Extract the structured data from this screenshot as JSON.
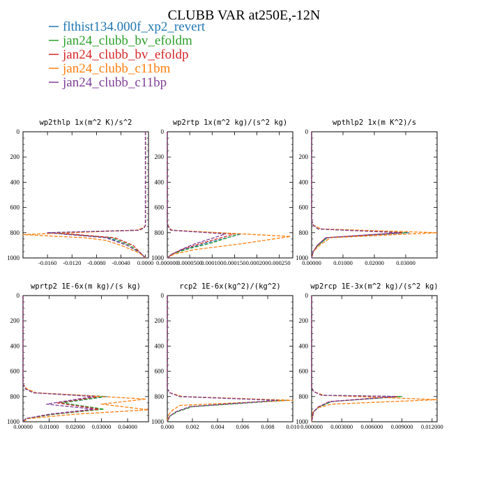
{
  "chart_data": {
    "type": "line",
    "title": "CLUBB VAR at250E,-12N",
    "legend_placement": "top-left",
    "legend": [
      {
        "name": "flthist134.000f_xp2_revert",
        "color": "#1f77b4"
      },
      {
        "name": "jan24_clubb_bv_efoldm",
        "color": "#2ca02c"
      },
      {
        "name": "jan24_clubb_bv_efoldp",
        "color": "#d62728"
      },
      {
        "name": "jan24_clubb_c11bm",
        "color": "#ff7f0e"
      },
      {
        "name": "jan24_clubb_c11bp",
        "color": "#7f3f98"
      }
    ],
    "panels": [
      {
        "title": "wp2thlp  1x(m^2 K)/s^2",
        "xlim": [
          -0.02,
          0.0005
        ],
        "ylim": [
          1000,
          0
        ],
        "xticks": [
          -0.016,
          -0.012,
          -0.008,
          -0.004,
          0.0
        ],
        "xtick_labels": [
          "-0.0160",
          "-0.0120",
          "-0.0080",
          "-0.0040",
          "0.0000"
        ],
        "yticks": [
          0,
          200,
          400,
          600,
          800,
          1000
        ],
        "series": [
          {
            "color": "#1f77b4",
            "x": [
              0.0,
              0.0,
              0.0,
              -0.0002,
              -0.001,
              -0.016,
              -0.006,
              -0.003,
              -0.0008,
              0.0
            ],
            "y": [
              0,
              700,
              740,
              760,
              780,
              800,
              840,
              900,
              960,
              1000
            ]
          },
          {
            "color": "#2ca02c",
            "x": [
              0.0,
              0.0,
              0.0,
              -0.0002,
              -0.001,
              -0.0155,
              -0.0055,
              -0.0025,
              -0.0008,
              0.0
            ],
            "y": [
              0,
              700,
              740,
              760,
              780,
              800,
              840,
              900,
              960,
              1000
            ]
          },
          {
            "color": "#d62728",
            "x": [
              0.0,
              0.0,
              0.0,
              -0.0002,
              -0.001,
              -0.015,
              -0.005,
              -0.002,
              -0.0008,
              0.0
            ],
            "y": [
              0,
              700,
              740,
              760,
              780,
              800,
              840,
              900,
              960,
              1000
            ]
          },
          {
            "color": "#ff7f0e",
            "x": [
              0.0,
              0.0,
              0.0,
              -0.0003,
              -0.0015,
              -0.02,
              -0.01,
              -0.0065,
              -0.004,
              -0.001,
              0.0
            ],
            "y": [
              0,
              700,
              740,
              760,
              780,
              815,
              840,
              860,
              900,
              960,
              1000
            ]
          },
          {
            "color": "#7f3f98",
            "x": [
              0.0,
              0.0,
              0.0,
              -0.0002,
              -0.001,
              -0.016,
              -0.0065,
              -0.003,
              -0.0008,
              0.0
            ],
            "y": [
              0,
              700,
              740,
              760,
              780,
              800,
              840,
              900,
              960,
              1000
            ]
          }
        ]
      },
      {
        "title": "wp2rtp  1x(m^2 kg)/(s^2 kg)",
        "xlim": [
          0.0,
          0.00028
        ],
        "ylim": [
          1000,
          0
        ],
        "xticks": [
          0.0,
          5e-05,
          0.0001,
          0.00015,
          0.0002,
          0.00025
        ],
        "xtick_labels": [
          "0.000000",
          "0.0000500",
          "0.000100",
          "0.000150",
          "0.000200",
          "0.000250"
        ],
        "yticks": [
          0,
          200,
          400,
          600,
          800,
          1000
        ],
        "series": [
          {
            "color": "#1f77b4",
            "x": [
              0.0,
              0.0,
              2e-06,
              8e-06,
              0.000165,
              9e-05,
              4e-05,
              1e-05,
              0.0
            ],
            "y": [
              0,
              720,
              750,
              780,
              810,
              880,
              930,
              970,
              1000
            ]
          },
          {
            "color": "#2ca02c",
            "x": [
              0.0,
              0.0,
              2e-06,
              8e-06,
              0.00016,
              0.0001,
              4.5e-05,
              1e-05,
              0.0
            ],
            "y": [
              0,
              720,
              750,
              780,
              810,
              880,
              930,
              970,
              1000
            ]
          },
          {
            "color": "#d62728",
            "x": [
              0.0,
              0.0,
              2e-06,
              8e-06,
              0.00015,
              8e-05,
              3.5e-05,
              1e-05,
              0.0
            ],
            "y": [
              0,
              720,
              750,
              780,
              810,
              880,
              930,
              970,
              1000
            ]
          },
          {
            "color": "#ff7f0e",
            "x": [
              0.0,
              0.0,
              3e-06,
              1e-05,
              0.000275,
              0.00016,
              6e-05,
              1.5e-05,
              0.0
            ],
            "y": [
              0,
              720,
              750,
              780,
              830,
              890,
              935,
              970,
              1000
            ]
          },
          {
            "color": "#7f3f98",
            "x": [
              0.0,
              0.0,
              2e-06,
              8e-06,
              0.00013,
              6e-05,
              3e-05,
              1e-05,
              0.0
            ],
            "y": [
              0,
              720,
              750,
              780,
              810,
              890,
              935,
              970,
              1000
            ]
          }
        ]
      },
      {
        "title": "wpthlp2  1x(m K^2)/s",
        "xlim": [
          0.0,
          0.04
        ],
        "ylim": [
          1000,
          0
        ],
        "xticks": [
          0.0,
          0.01,
          0.02,
          0.03
        ],
        "xtick_labels": [
          "0.00000",
          "0.01000",
          "0.02000",
          "0.03000"
        ],
        "yticks": [
          0,
          200,
          400,
          600,
          800,
          1000
        ],
        "series": [
          {
            "color": "#1f77b4",
            "x": [
              0.0,
              0.0,
              0.0005,
              0.002,
              0.031,
              0.005,
              0.002,
              0.0005,
              0.0
            ],
            "y": [
              0,
              700,
              740,
              770,
              800,
              840,
              900,
              950,
              1000
            ]
          },
          {
            "color": "#2ca02c",
            "x": [
              0.0,
              0.0,
              0.0005,
              0.002,
              0.03,
              0.005,
              0.002,
              0.0005,
              0.0
            ],
            "y": [
              0,
              700,
              740,
              770,
              800,
              840,
              900,
              950,
              1000
            ]
          },
          {
            "color": "#d62728",
            "x": [
              0.0,
              0.0,
              0.0005,
              0.002,
              0.029,
              0.0045,
              0.0018,
              0.0005,
              0.0
            ],
            "y": [
              0,
              700,
              740,
              770,
              800,
              840,
              900,
              950,
              1000
            ]
          },
          {
            "color": "#ff7f0e",
            "x": [
              0.0,
              0.0,
              0.0006,
              0.003,
              0.04,
              0.006,
              0.0025,
              0.0005,
              0.0
            ],
            "y": [
              0,
              700,
              740,
              770,
              800,
              840,
              900,
              950,
              1000
            ]
          },
          {
            "color": "#7f3f98",
            "x": [
              0.0,
              0.0,
              0.0005,
              0.002,
              0.028,
              0.0045,
              0.0018,
              0.0005,
              0.0
            ],
            "y": [
              0,
              700,
              740,
              770,
              800,
              840,
              900,
              950,
              1000
            ]
          }
        ]
      },
      {
        "title": "wprtp2  1E-6x(m kg)/(s kg)",
        "xlim": [
          0.0,
          0.048
        ],
        "ylim": [
          1000,
          0
        ],
        "xticks": [
          0.0,
          0.01,
          0.02,
          0.03,
          0.04
        ],
        "xtick_labels": [
          "0.00000",
          "0.01000",
          "0.02000",
          "0.03000",
          "0.04000"
        ],
        "yticks": [
          0,
          200,
          400,
          600,
          800,
          1000
        ],
        "series": [
          {
            "color": "#1f77b4",
            "x": [
              0.0,
              0.0,
              0.001,
              0.004,
              0.032,
              0.015,
              0.03,
              0.012,
              0.001,
              0.0
            ],
            "y": [
              0,
              700,
              740,
              770,
              800,
              850,
              900,
              940,
              975,
              1000
            ]
          },
          {
            "color": "#2ca02c",
            "x": [
              0.0,
              0.0,
              0.001,
              0.004,
              0.031,
              0.015,
              0.031,
              0.012,
              0.001,
              0.0
            ],
            "y": [
              0,
              700,
              740,
              770,
              800,
              850,
              900,
              940,
              975,
              1000
            ]
          },
          {
            "color": "#d62728",
            "x": [
              0.0,
              0.0,
              0.001,
              0.004,
              0.029,
              0.013,
              0.029,
              0.011,
              0.001,
              0.0
            ],
            "y": [
              0,
              700,
              740,
              770,
              800,
              850,
              900,
              940,
              975,
              1000
            ]
          },
          {
            "color": "#ff7f0e",
            "x": [
              0.0,
              0.0,
              0.0015,
              0.005,
              0.047,
              0.03,
              0.048,
              0.02,
              0.002,
              0.0
            ],
            "y": [
              0,
              700,
              740,
              770,
              820,
              860,
              905,
              940,
              975,
              1000
            ]
          },
          {
            "color": "#7f3f98",
            "x": [
              0.0,
              0.0,
              0.001,
              0.004,
              0.027,
              0.009,
              0.027,
              0.01,
              0.001,
              0.0
            ],
            "y": [
              0,
              700,
              740,
              770,
              800,
              860,
              900,
              940,
              975,
              1000
            ]
          }
        ]
      },
      {
        "title": "rcp2  1E-6x(kg^2)/(kg^2)",
        "xlim": [
          0.0,
          0.01
        ],
        "ylim": [
          1000,
          0
        ],
        "xticks": [
          0.0,
          0.002,
          0.004,
          0.006,
          0.008,
          0.01
        ],
        "xtick_labels": [
          "0.000",
          "0.002",
          "0.004",
          "0.006",
          "0.008",
          "0.010"
        ],
        "yticks": [
          0,
          200,
          400,
          600,
          800,
          1000
        ],
        "series": [
          {
            "color": "#1f77b4",
            "x": [
              0.0,
              0.0,
              0.0002,
              0.001,
              0.0095,
              0.002,
              0.0008,
              0.0002,
              0.0
            ],
            "y": [
              0,
              740,
              770,
              800,
              830,
              880,
              920,
              955,
              1000
            ]
          },
          {
            "color": "#2ca02c",
            "x": [
              0.0,
              0.0,
              0.0002,
              0.001,
              0.0093,
              0.002,
              0.0008,
              0.0002,
              0.0
            ],
            "y": [
              0,
              740,
              770,
              800,
              830,
              880,
              920,
              955,
              1000
            ]
          },
          {
            "color": "#d62728",
            "x": [
              0.0,
              0.0,
              0.0002,
              0.001,
              0.009,
              0.0018,
              0.0007,
              0.0002,
              0.0
            ],
            "y": [
              0,
              740,
              770,
              800,
              830,
              880,
              920,
              955,
              1000
            ]
          },
          {
            "color": "#ff7f0e",
            "x": [
              0.0,
              0.0,
              0.0002,
              0.0012,
              0.01,
              0.001,
              0.0004,
              0.0001,
              0.0
            ],
            "y": [
              0,
              740,
              770,
              800,
              830,
              870,
              910,
              945,
              1000
            ]
          },
          {
            "color": "#7f3f98",
            "x": [
              0.0,
              0.0,
              0.0002,
              0.001,
              0.0088,
              0.0018,
              0.0007,
              0.0002,
              0.0
            ],
            "y": [
              0,
              740,
              770,
              800,
              830,
              880,
              920,
              955,
              1000
            ]
          }
        ]
      },
      {
        "title": "wp2rcp  1E-3x(m^2 kg)/(s^2 kg)",
        "xlim": [
          0.0,
          0.0125
        ],
        "ylim": [
          1000,
          0
        ],
        "xticks": [
          0.0,
          0.003,
          0.006,
          0.009,
          0.012
        ],
        "xtick_labels": [
          "0.000000",
          "0.003000",
          "0.006000",
          "0.009000",
          "0.012000"
        ],
        "yticks": [
          0,
          200,
          400,
          600,
          800,
          1000
        ],
        "series": [
          {
            "color": "#1f77b4",
            "x": [
              0.0,
              0.0,
              0.0002,
              0.001,
              0.0088,
              0.002,
              0.0008,
              0.0002,
              0.0
            ],
            "y": [
              0,
              730,
              760,
              790,
              800,
              840,
              880,
              920,
              1000
            ]
          },
          {
            "color": "#2ca02c",
            "x": [
              0.0,
              0.0,
              0.0002,
              0.001,
              0.009,
              0.002,
              0.0008,
              0.0002,
              0.0
            ],
            "y": [
              0,
              730,
              760,
              790,
              800,
              840,
              880,
              920,
              1000
            ]
          },
          {
            "color": "#d62728",
            "x": [
              0.0,
              0.0,
              0.0002,
              0.001,
              0.0085,
              0.0018,
              0.0007,
              0.0002,
              0.0
            ],
            "y": [
              0,
              730,
              760,
              790,
              800,
              840,
              880,
              920,
              1000
            ]
          },
          {
            "color": "#ff7f0e",
            "x": [
              0.0,
              0.0,
              0.0002,
              0.0012,
              0.0125,
              0.002,
              0.0006,
              0.0001,
              0.0
            ],
            "y": [
              0,
              730,
              760,
              790,
              825,
              860,
              890,
              925,
              1000
            ]
          },
          {
            "color": "#7f3f98",
            "x": [
              0.0,
              0.0,
              0.0002,
              0.001,
              0.0083,
              0.0018,
              0.0007,
              0.0002,
              0.0
            ],
            "y": [
              0,
              730,
              760,
              790,
              800,
              840,
              880,
              920,
              1000
            ]
          }
        ]
      }
    ]
  }
}
